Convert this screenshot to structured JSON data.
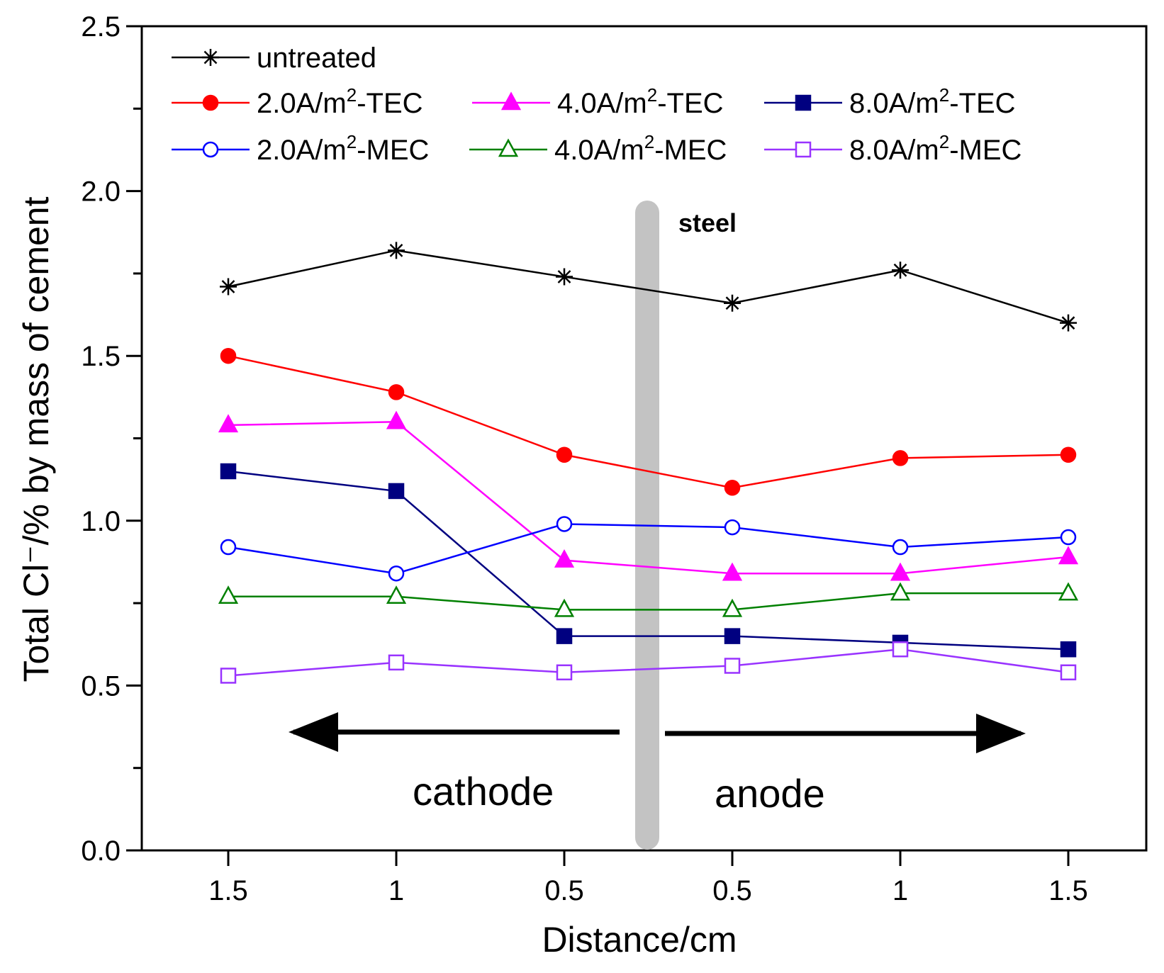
{
  "chart_data": {
    "type": "line",
    "title": "",
    "xlabel": "Distance/cm",
    "ylabel": "Total Cl⁻/% by mass of cement",
    "ylim": [
      0,
      2.5
    ],
    "yticks": [
      "0.0",
      "0.5",
      "1.0",
      "1.5",
      "2.0",
      "2.5"
    ],
    "categories": [
      "1.5",
      "1",
      "0.5",
      "0.5",
      "1",
      "1.5"
    ],
    "series": [
      {
        "name": "untreated",
        "label": "untreated",
        "color": "#000000",
        "marker": "star",
        "filled": false,
        "values": [
          1.71,
          1.82,
          1.74,
          1.66,
          1.76,
          1.6
        ]
      },
      {
        "name": "2.0A/m2-TEC",
        "label": "2.0A/m²-TEC",
        "color": "#ff0000",
        "marker": "circle",
        "filled": true,
        "values": [
          1.5,
          1.39,
          1.2,
          1.1,
          1.19,
          1.2
        ]
      },
      {
        "name": "4.0A/m2-TEC",
        "label": "4.0A/m²-TEC",
        "color": "#ff00ff",
        "marker": "triangle",
        "filled": true,
        "values": [
          1.29,
          1.3,
          0.88,
          0.84,
          0.84,
          0.89
        ]
      },
      {
        "name": "8.0A/m2-TEC",
        "label": "8.0A/m²-TEC",
        "color": "#000080",
        "marker": "square",
        "filled": true,
        "values": [
          1.15,
          1.09,
          0.65,
          0.65,
          0.63,
          0.61
        ]
      },
      {
        "name": "2.0A/m2-MEC",
        "label": "2.0A/m²-MEC",
        "color": "#0000ff",
        "marker": "circle",
        "filled": false,
        "values": [
          0.92,
          0.84,
          0.99,
          0.98,
          0.92,
          0.95
        ]
      },
      {
        "name": "4.0A/m2-MEC",
        "label": "4.0A/m²-MEC",
        "color": "#008000",
        "marker": "triangle",
        "filled": false,
        "values": [
          0.77,
          0.77,
          0.73,
          0.73,
          0.78,
          0.78
        ]
      },
      {
        "name": "8.0A/m2-MEC",
        "label": "8.0A/m²-MEC",
        "color": "#9933ff",
        "marker": "square",
        "filled": false,
        "values": [
          0.53,
          0.57,
          0.54,
          0.56,
          0.61,
          0.54
        ]
      }
    ],
    "annotations": {
      "steel": "steel",
      "cathode": "cathode",
      "anode": "anode"
    },
    "legend_position": "top-left"
  }
}
